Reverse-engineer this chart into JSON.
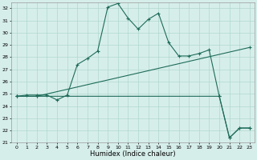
{
  "xlabel": "Humidex (Indice chaleur)",
  "xlim": [
    -0.5,
    23.5
  ],
  "ylim": [
    21,
    32.5
  ],
  "yticks": [
    21,
    22,
    23,
    24,
    25,
    26,
    27,
    28,
    29,
    30,
    31,
    32
  ],
  "xticks": [
    0,
    1,
    2,
    3,
    4,
    5,
    6,
    7,
    8,
    9,
    10,
    11,
    12,
    13,
    14,
    15,
    16,
    17,
    18,
    19,
    20,
    21,
    22,
    23
  ],
  "bg_color": "#d6eeea",
  "line_color": "#1e6b5a",
  "grid_color": "#b0d8ce",
  "line1_x": [
    0,
    1,
    2,
    3,
    4,
    5,
    6,
    7,
    8,
    9,
    10,
    11,
    12,
    13,
    14,
    15,
    16,
    17,
    18,
    19,
    20,
    21,
    22,
    23
  ],
  "line1_y": [
    24.8,
    24.9,
    24.9,
    24.9,
    24.5,
    24.9,
    27.4,
    27.9,
    28.5,
    32.1,
    32.4,
    31.2,
    30.3,
    31.1,
    31.6,
    29.2,
    28.1,
    28.1,
    28.3,
    28.6,
    24.8,
    21.4,
    22.2,
    22.2
  ],
  "line2_x": [
    0,
    2,
    23
  ],
  "line2_y": [
    24.8,
    24.8,
    28.8
  ],
  "line3_x": [
    0,
    2,
    20,
    21,
    22,
    23
  ],
  "line3_y": [
    24.8,
    24.8,
    24.8,
    21.4,
    22.2,
    22.2
  ]
}
